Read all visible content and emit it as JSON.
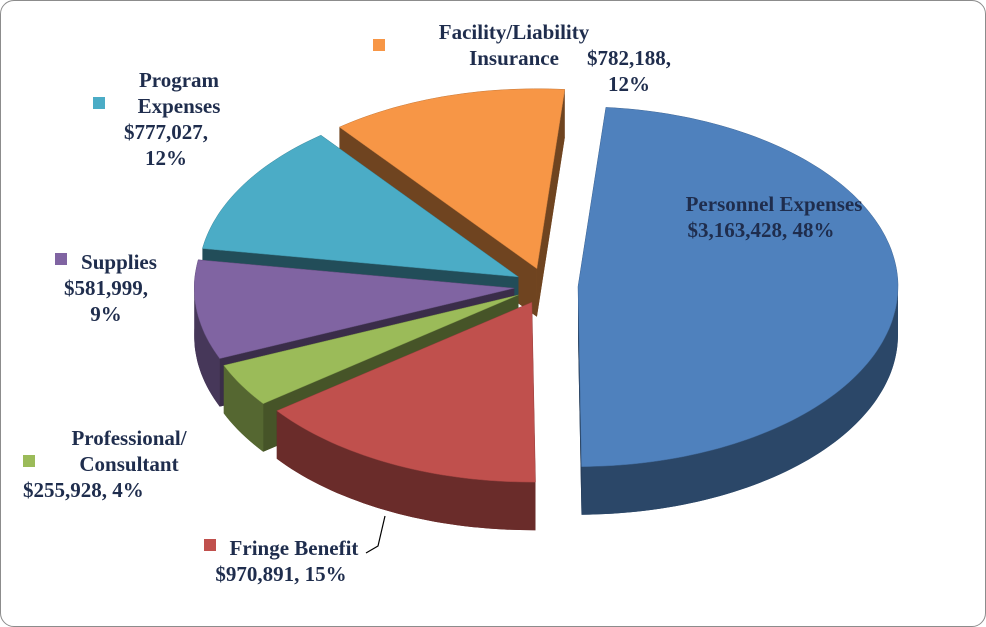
{
  "chart_data": {
    "type": "pie",
    "categories": [
      "Personnel Expenses",
      "Fringe Benefit",
      "Professional/ Consultant",
      "Supplies",
      "Program Expenses",
      "Facility/Liability Insurance"
    ],
    "values": [
      3163428,
      970891,
      255928,
      581999,
      777027,
      782188
    ],
    "value_labels": [
      "$3,163,428, 48%",
      "$970,891, 15%",
      "$255,928, 4%",
      "$581,999, 9%",
      "$777,027, 12%",
      "$782,188, 12%"
    ],
    "colors": [
      "#4f81bd",
      "#c0504d",
      "#9bbb59",
      "#8064a2",
      "#4bacc6",
      "#f79646"
    ]
  }
}
